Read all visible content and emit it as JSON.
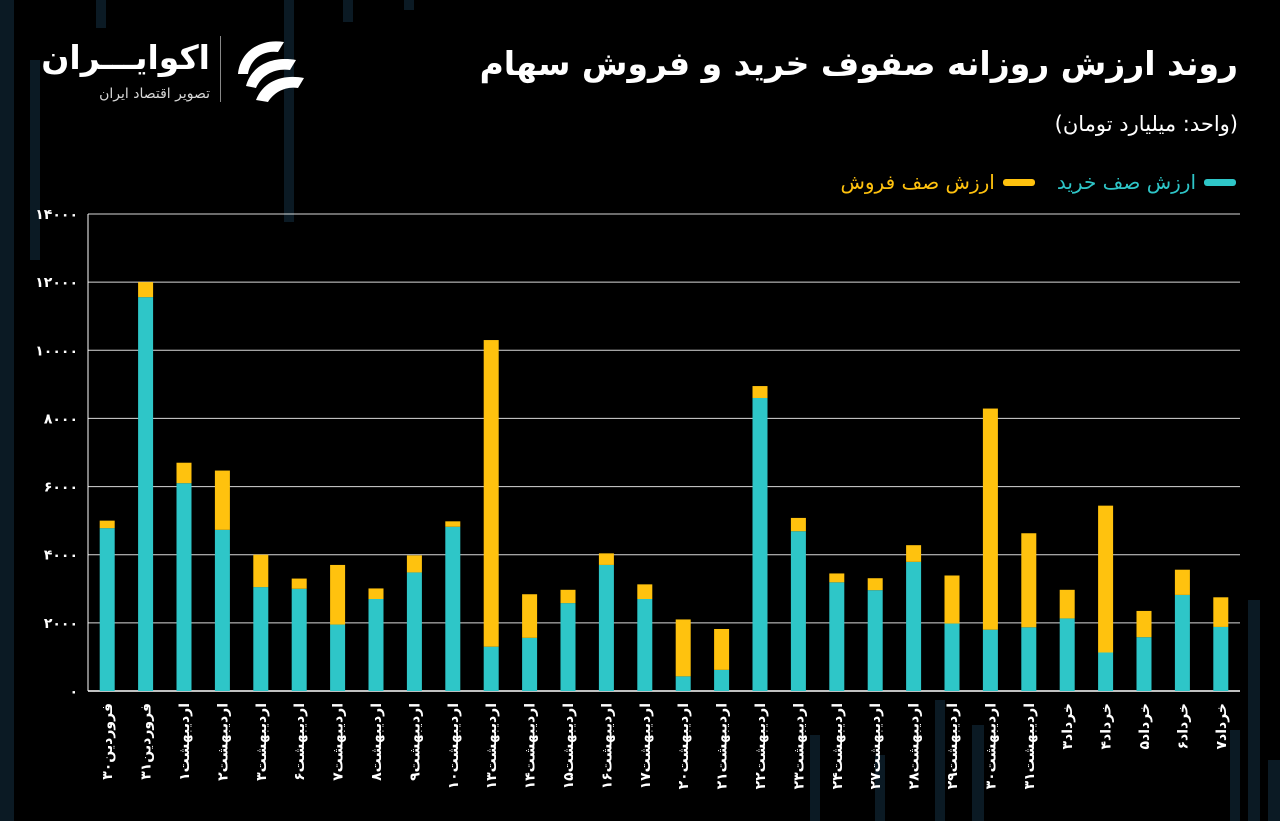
{
  "title": "روند ارزش روزانه صفوف خرید و فروش سهام",
  "subtitle": "(واحد: میلیارد تومان)",
  "brand": {
    "name": "اکوایـــران",
    "tagline": "تصویر اقتصاد ایران"
  },
  "colors": {
    "buy": "#2ec6c8",
    "sell": "#ffc20e",
    "background": "#000000",
    "axis": "#ffffff"
  },
  "chart_data": {
    "type": "bar",
    "stacked": true,
    "title": "روند ارزش روزانه صفوف خرید و فروش سهام",
    "subtitle": "(واحد: میلیارد تومان)",
    "ylim": [
      0,
      14000
    ],
    "yticks": [
      0,
      2000,
      4000,
      6000,
      8000,
      10000,
      12000,
      14000
    ],
    "ytick_labels": [
      "۰",
      "۲۰۰۰",
      "۴۰۰۰",
      "۶۰۰۰",
      "۸۰۰۰",
      "۱۰۰۰۰",
      "۱۲۰۰۰",
      "۱۴۰۰۰"
    ],
    "grid": true,
    "legend_position": "top-right",
    "categories": [
      "۳۰فروردین",
      "۳۱فروردین",
      "۱اردیبهشت",
      "۲اردیبهشت",
      "۳اردیبهشت",
      "۶اردیبهشت",
      "۷اردیبهشت",
      "۸اردیبهشت",
      "۹اردیبهشت",
      "۱۰اردیبهشت",
      "۱۳اردیبهشت",
      "۱۴اردیبهشت",
      "۱۵اردیبهشت",
      "۱۶اردیبهشت",
      "۱۷اردیبهشت",
      "۲۰اردیبهشت",
      "۲۱اردیبهشت",
      "۲۲اردیبهشت",
      "۲۳اردیبهشت",
      "۲۴اردیبهشت",
      "۲۷اردیبهشت",
      "۲۸اردیبهشت",
      "۲۹اردیبهشت",
      "۳۰اردیبهشت",
      "۳۱اردیبهشت",
      "۳خرداد",
      "۴خرداد",
      "۵خرداد",
      "۶خرداد",
      "۷خرداد"
    ],
    "series": [
      {
        "name": "ارزش صف خرید",
        "color": "#2ec6c8",
        "values": [
          4780,
          11560,
          6100,
          4730,
          3050,
          3000,
          1950,
          2700,
          3480,
          4820,
          1300,
          1560,
          2580,
          3700,
          2700,
          430,
          620,
          8600,
          4690,
          3190,
          2960,
          3790,
          1980,
          1800,
          1870,
          2130,
          1130,
          1580,
          2820,
          1880
        ]
      },
      {
        "name": "ارزش صف فروش",
        "color": "#ffc20e",
        "values": [
          220,
          440,
          600,
          1740,
          950,
          300,
          1750,
          310,
          500,
          160,
          9000,
          1280,
          390,
          340,
          430,
          1670,
          1200,
          350,
          390,
          260,
          350,
          490,
          1410,
          6490,
          2760,
          840,
          4310,
          770,
          740,
          870
        ]
      }
    ]
  }
}
